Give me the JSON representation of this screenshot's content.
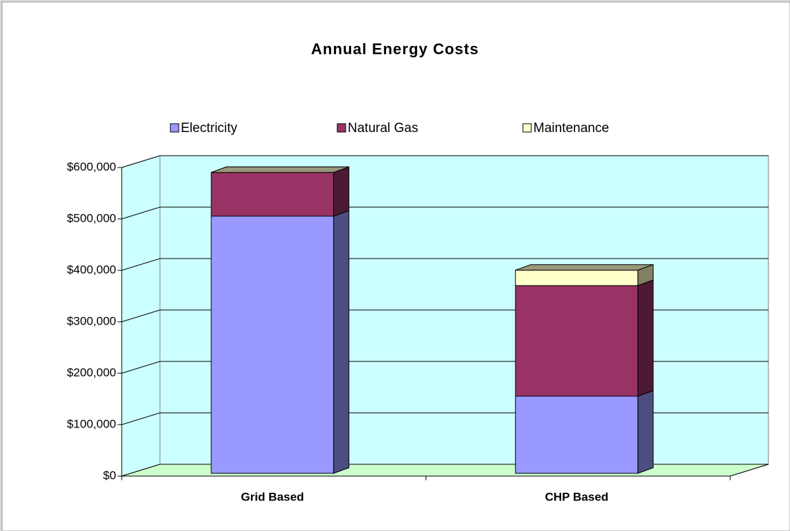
{
  "chart_data": {
    "type": "bar",
    "stacked": true,
    "title": "Annual Energy Costs",
    "categories": [
      "Grid Based",
      "CHP Based"
    ],
    "series": [
      {
        "name": "Electricity",
        "color": "#9999ff",
        "values": [
          500000,
          150000
        ]
      },
      {
        "name": "Natural Gas",
        "color": "#993366",
        "values": [
          85000,
          215000
        ]
      },
      {
        "name": "Maintenance",
        "color": "#ffffcc",
        "values": [
          0,
          30000
        ]
      }
    ],
    "ylim": [
      0,
      600000
    ],
    "yticks": [
      {
        "value": 0,
        "label": "$0"
      },
      {
        "value": 100000,
        "label": "$100,000"
      },
      {
        "value": 200000,
        "label": "$200,000"
      },
      {
        "value": 300000,
        "label": "$300,000"
      },
      {
        "value": 400000,
        "label": "$400,000"
      },
      {
        "value": 500000,
        "label": "$500,000"
      },
      {
        "value": 600000,
        "label": "$600,000"
      }
    ],
    "grid": true,
    "legend": "top"
  }
}
